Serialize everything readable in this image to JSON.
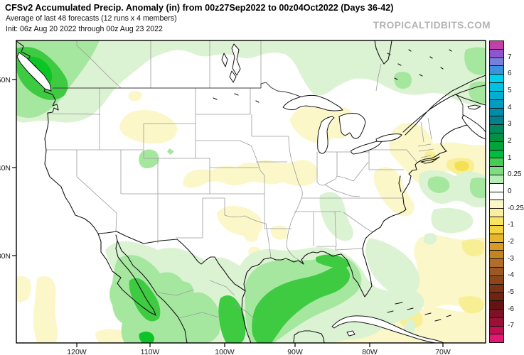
{
  "header": {
    "title": "CFSv2 Accumulated Precip. Anomaly (in) from 00z27Sep2022 to 00z04Oct2022 (Days 36-42)",
    "subtitle": "Average of last 48 forecasts (12 runs x 4 members)",
    "init_line": "Init: 06z Aug 20 2022 through 00z Aug 23 2022",
    "watermark": "TROPICALTIDBITS.COM"
  },
  "map": {
    "lat_labels": [
      "50N",
      "40N",
      "30N"
    ],
    "lon_labels": [
      "120W",
      "110W",
      "100W",
      "90W",
      "80W",
      "70W"
    ]
  },
  "colorbar": {
    "unit": "in",
    "labels": [
      "7",
      "6",
      "5",
      "4",
      "3",
      "2",
      "1",
      "0.25",
      "0",
      "-0.25",
      "-1",
      "-2",
      "-3",
      "-4",
      "-5",
      "-6",
      "-7"
    ],
    "colors": [
      "#c33fa9",
      "#8f55cf",
      "#7680dc",
      "#3d92de",
      "#00d0f0",
      "#00c0e2",
      "#00aed2",
      "#009cc0",
      "#008ca8",
      "#00838e",
      "#008a60",
      "#009244",
      "#00a438",
      "#00bc3e",
      "#44cc54",
      "#7edc84",
      "#b6ecb6",
      "#ffffff",
      "#ffffff",
      "#faf6c8",
      "#f9ef9e",
      "#f9e462",
      "#f4d340",
      "#e8b42c",
      "#d89a26",
      "#c48424",
      "#b06e28",
      "#9c5a20",
      "#8c4618",
      "#7e3414",
      "#702410",
      "#641410",
      "#7c1228",
      "#9c1038",
      "#c01050",
      "#e41870"
    ]
  },
  "palette": {
    "pale_green": "#dcf3d3",
    "light_green": "#a6e7a0",
    "bright_green": "#3ecb42",
    "vivid_green": "#0cc426",
    "pale_yellow": "#fbf7c8",
    "light_yellow": "#f8ee94",
    "deep_yellow": "#f4df55",
    "coast": "#151515",
    "state_border": "#9b9b9b",
    "country_border": "#3c3c3c",
    "frame": "#000000",
    "watermark": "#b2b2b2"
  }
}
